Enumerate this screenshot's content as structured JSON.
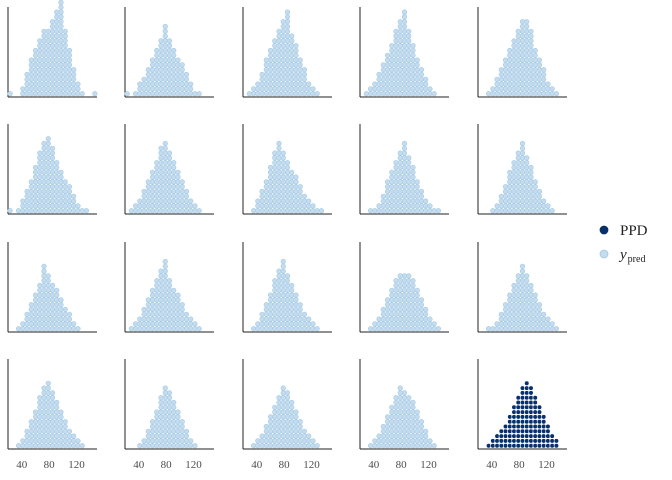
{
  "chart_data": {
    "type": "dotplot",
    "panels": 20,
    "grid": false,
    "x_ticks": [
      40,
      80,
      120
    ],
    "xlim": [
      20,
      150
    ],
    "legend": {
      "position": "right",
      "entries": [
        {
          "key": "ppd",
          "label": "PPD",
          "color": "#08306b"
        },
        {
          "key": "ypred",
          "label": "y",
          "sub": "pred",
          "color": "#c6dbef"
        }
      ]
    },
    "panel_styles": [
      "ypred",
      "ypred",
      "ypred",
      "ypred",
      "ypred",
      "ypred",
      "ypred",
      "ypred",
      "ypred",
      "ypred",
      "ypred",
      "ypred",
      "ypred",
      "ypred",
      "ypred",
      "ypred",
      "ypred",
      "ypred",
      "ypred",
      "ppd"
    ],
    "column_counts": [
      [
        1,
        0,
        0,
        2,
        5,
        8,
        10,
        12,
        14,
        14,
        16,
        18,
        20,
        14,
        10,
        6,
        3,
        1,
        0,
        0,
        1
      ],
      [
        1,
        0,
        1,
        3,
        4,
        6,
        8,
        10,
        12,
        15,
        12,
        10,
        8,
        7,
        5,
        3,
        1,
        1,
        0,
        0,
        0
      ],
      [
        0,
        1,
        2,
        3,
        5,
        8,
        10,
        12,
        14,
        16,
        18,
        13,
        11,
        8,
        6,
        3,
        2,
        1,
        0,
        0,
        0
      ],
      [
        0,
        1,
        2,
        3,
        5,
        7,
        9,
        11,
        14,
        16,
        18,
        14,
        11,
        8,
        6,
        4,
        2,
        1,
        0,
        0,
        0
      ],
      [
        0,
        0,
        1,
        2,
        4,
        6,
        8,
        10,
        12,
        14,
        16,
        16,
        14,
        10,
        8,
        6,
        3,
        2,
        1,
        0,
        0
      ],
      [
        1,
        0,
        1,
        3,
        5,
        7,
        10,
        13,
        15,
        16,
        14,
        11,
        9,
        7,
        6,
        4,
        2,
        1,
        1,
        0,
        0
      ],
      [
        0,
        1,
        2,
        3,
        5,
        7,
        9,
        11,
        14,
        15,
        13,
        11,
        9,
        7,
        5,
        3,
        2,
        1,
        0,
        0,
        0
      ],
      [
        0,
        0,
        1,
        3,
        5,
        7,
        10,
        13,
        15,
        13,
        11,
        9,
        8,
        6,
        4,
        3,
        2,
        1,
        1,
        0,
        0
      ],
      [
        0,
        0,
        1,
        1,
        2,
        4,
        7,
        9,
        11,
        13,
        15,
        12,
        10,
        7,
        5,
        3,
        2,
        1,
        1,
        0,
        0
      ],
      [
        0,
        0,
        0,
        1,
        2,
        4,
        6,
        9,
        11,
        13,
        15,
        12,
        10,
        7,
        5,
        3,
        2,
        1,
        0,
        0,
        0
      ],
      [
        0,
        0,
        1,
        2,
        4,
        6,
        8,
        10,
        14,
        12,
        10,
        9,
        7,
        5,
        4,
        2,
        1,
        0,
        0,
        0,
        0
      ],
      [
        0,
        1,
        2,
        3,
        5,
        7,
        9,
        11,
        13,
        15,
        11,
        9,
        8,
        6,
        4,
        3,
        2,
        1,
        0,
        0,
        0
      ],
      [
        0,
        0,
        1,
        2,
        4,
        6,
        8,
        11,
        13,
        15,
        12,
        10,
        8,
        6,
        4,
        3,
        2,
        1,
        0,
        0,
        0
      ],
      [
        0,
        0,
        1,
        2,
        3,
        5,
        7,
        9,
        11,
        12,
        12,
        12,
        11,
        9,
        7,
        5,
        3,
        2,
        1,
        0,
        0
      ],
      [
        0,
        0,
        1,
        1,
        2,
        4,
        6,
        8,
        10,
        12,
        14,
        12,
        10,
        8,
        6,
        4,
        3,
        2,
        1,
        0,
        0
      ],
      [
        0,
        0,
        1,
        2,
        4,
        6,
        8,
        11,
        13,
        14,
        12,
        10,
        8,
        6,
        4,
        3,
        2,
        1,
        0,
        0,
        0
      ],
      [
        0,
        0,
        0,
        1,
        2,
        4,
        6,
        8,
        11,
        13,
        12,
        10,
        8,
        6,
        4,
        2,
        1,
        0,
        0,
        0,
        0
      ],
      [
        0,
        0,
        1,
        2,
        3,
        5,
        7,
        9,
        11,
        13,
        12,
        10,
        8,
        6,
        4,
        3,
        2,
        1,
        0,
        0,
        0
      ],
      [
        0,
        0,
        1,
        2,
        3,
        5,
        7,
        9,
        11,
        13,
        12,
        11,
        10,
        8,
        6,
        4,
        2,
        1,
        0,
        0,
        0
      ],
      [
        0,
        0,
        1,
        2,
        3,
        4,
        5,
        7,
        9,
        11,
        13,
        14,
        13,
        11,
        9,
        7,
        5,
        3,
        2,
        0,
        0
      ]
    ]
  }
}
